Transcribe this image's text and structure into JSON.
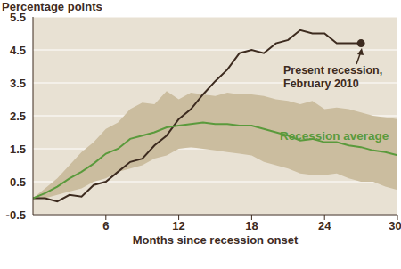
{
  "chart_data": {
    "type": "line",
    "title": "Percentage points",
    "x_label": "Months since recession onset",
    "x": [
      0,
      1,
      2,
      3,
      4,
      5,
      6,
      7,
      8,
      9,
      10,
      11,
      12,
      13,
      14,
      15,
      16,
      17,
      18,
      19,
      20,
      21,
      22,
      23,
      24,
      25,
      26,
      27,
      28,
      29,
      30
    ],
    "series": [
      {
        "name": "Present recession, February 2010",
        "color": "#3d2b1f",
        "values": [
          0,
          0,
          -0.1,
          0.1,
          0.05,
          0.4,
          0.5,
          0.8,
          1.1,
          1.2,
          1.6,
          1.9,
          2.4,
          2.7,
          3.15,
          3.55,
          3.9,
          4.4,
          4.5,
          4.4,
          4.7,
          4.8,
          5.1,
          5.0,
          5.0,
          4.7,
          4.7,
          4.7,
          null,
          null,
          null
        ]
      },
      {
        "name": "Recession average",
        "color": "#5a9a3c",
        "values": [
          0,
          0.15,
          0.35,
          0.6,
          0.8,
          1.05,
          1.35,
          1.5,
          1.8,
          1.9,
          2.0,
          2.15,
          2.2,
          2.25,
          2.3,
          2.25,
          2.25,
          2.2,
          2.2,
          2.1,
          2.0,
          1.9,
          1.75,
          1.8,
          1.7,
          1.7,
          1.6,
          1.55,
          1.45,
          1.4,
          1.3
        ]
      }
    ],
    "band": {
      "color": "#cbbd9f",
      "low": [
        0,
        0,
        0.1,
        0.2,
        0.3,
        0.5,
        0.6,
        0.8,
        0.9,
        1.0,
        1.2,
        1.3,
        1.5,
        1.55,
        1.5,
        1.45,
        1.4,
        1.35,
        1.3,
        1.1,
        1.0,
        0.9,
        0.75,
        0.7,
        0.7,
        0.75,
        0.6,
        0.5,
        0.5,
        0.35,
        0.25
      ],
      "high": [
        0,
        0.3,
        0.6,
        1.0,
        1.4,
        1.7,
        2.1,
        2.3,
        2.7,
        2.9,
        2.85,
        3.25,
        3.0,
        3.2,
        3.15,
        3.1,
        3.2,
        3.15,
        3.15,
        3.1,
        3.0,
        2.95,
        2.85,
        2.95,
        2.7,
        2.75,
        2.7,
        2.6,
        2.5,
        2.45,
        2.4
      ]
    },
    "annotations": [
      {
        "lines": [
          "Present recession,",
          "February 2010"
        ],
        "series": "Present recession, February 2010"
      },
      {
        "lines": [
          "Recession average"
        ],
        "series": "Recession average"
      }
    ],
    "xlim": [
      0,
      30
    ],
    "xticks": [
      6,
      12,
      18,
      24,
      30
    ],
    "ylim": [
      -0.5,
      5.5
    ],
    "yticks": [
      -0.5,
      0.5,
      1.5,
      2.5,
      3.5,
      4.5,
      5.5
    ],
    "grid": true
  }
}
